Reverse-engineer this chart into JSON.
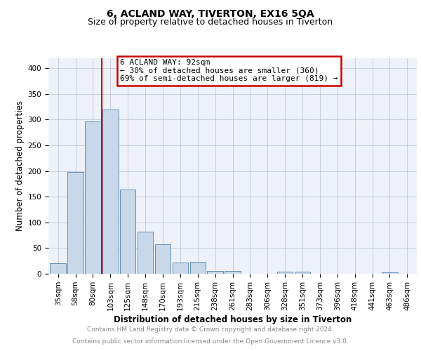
{
  "title": "6, ACLAND WAY, TIVERTON, EX16 5QA",
  "subtitle": "Size of property relative to detached houses in Tiverton",
  "xlabel": "Distribution of detached houses by size in Tiverton",
  "ylabel": "Number of detached properties",
  "categories": [
    "35sqm",
    "58sqm",
    "80sqm",
    "103sqm",
    "125sqm",
    "148sqm",
    "170sqm",
    "193sqm",
    "215sqm",
    "238sqm",
    "261sqm",
    "283sqm",
    "306sqm",
    "328sqm",
    "351sqm",
    "373sqm",
    "396sqm",
    "418sqm",
    "441sqm",
    "463sqm",
    "486sqm"
  ],
  "values": [
    20,
    198,
    297,
    320,
    164,
    82,
    58,
    22,
    23,
    6,
    6,
    0,
    0,
    4,
    4,
    0,
    0,
    0,
    0,
    3,
    0
  ],
  "bar_color": "#c8d8e8",
  "bar_edge_color": "#6090b8",
  "annotation_text": "6 ACLAND WAY: 92sqm\n← 30% of detached houses are smaller (360)\n69% of semi-detached houses are larger (819) →",
  "annotation_box_color": "white",
  "annotation_box_edge_color": "#cc0000",
  "red_line_color": "#cc0000",
  "red_line_x": 2.52,
  "ylim": [
    0,
    420
  ],
  "yticks": [
    0,
    50,
    100,
    150,
    200,
    250,
    300,
    350,
    400
  ],
  "grid_color": "#c0c8d8",
  "background_color": "#eef2f8",
  "footer_line1": "Contains HM Land Registry data © Crown copyright and database right 2024.",
  "footer_line2": "Contains public sector information licensed under the Open Government Licence v3.0.",
  "title_fontsize": 10,
  "subtitle_fontsize": 9,
  "axis_label_fontsize": 8.5,
  "tick_fontsize": 7.5,
  "annotation_fontsize": 8,
  "footer_fontsize": 6.5
}
